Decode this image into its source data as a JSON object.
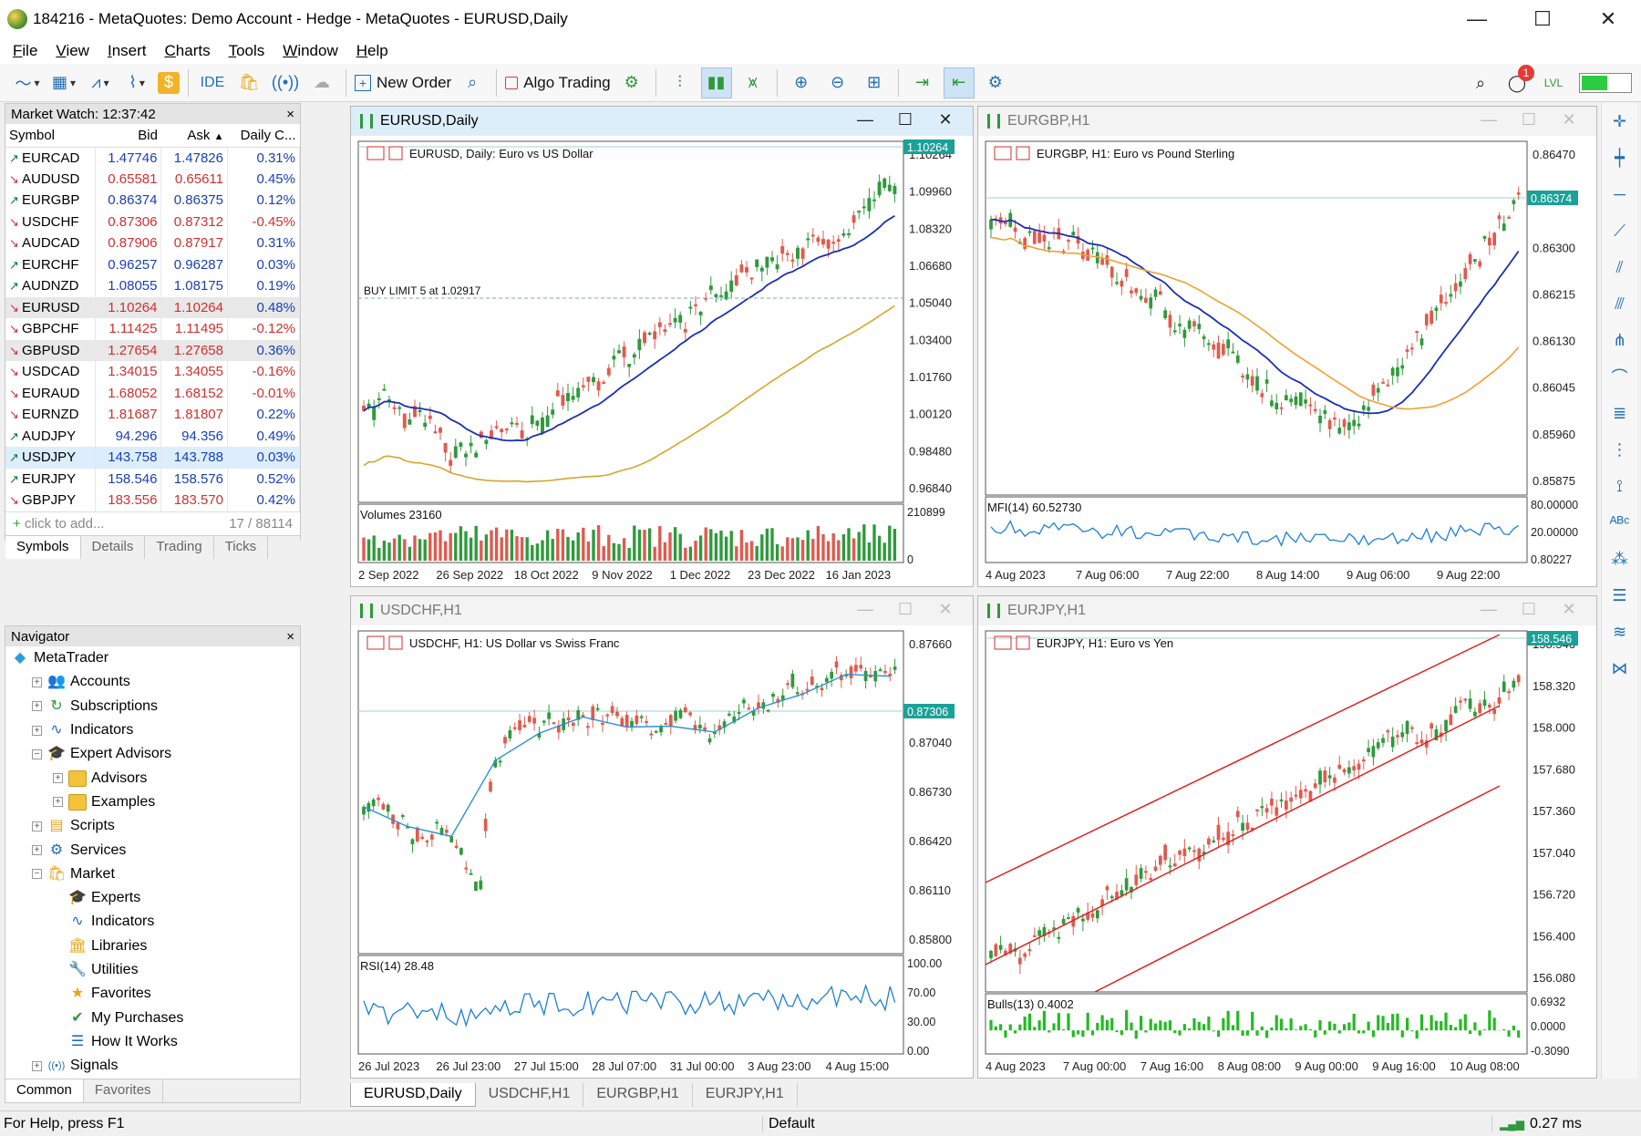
{
  "window": {
    "title": "184216 - MetaQuotes: Demo Account - Hedge - MetaQuotes - EURUSD,Daily"
  },
  "menu": [
    "File",
    "View",
    "Insert",
    "Charts",
    "Tools",
    "Window",
    "Help"
  ],
  "toolbar": {
    "ide": "IDE",
    "new_order": "New Order",
    "algo_trading": "Algo Trading",
    "notifications": "1"
  },
  "market_watch": {
    "title": "Market Watch: 12:37:42",
    "columns": [
      "Symbol",
      "Bid",
      "Ask",
      "Daily C..."
    ],
    "rows": [
      {
        "symbol": "EURCAD",
        "bid": "1.47746",
        "ask": "1.47826",
        "chg": "0.31%",
        "dir": "up"
      },
      {
        "symbol": "AUDUSD",
        "bid": "0.65581",
        "ask": "0.65611",
        "chg": "0.45%",
        "dir": "dn"
      },
      {
        "symbol": "EURGBP",
        "bid": "0.86374",
        "ask": "0.86375",
        "chg": "0.12%",
        "dir": "up"
      },
      {
        "symbol": "USDCHF",
        "bid": "0.87306",
        "ask": "0.87312",
        "chg": "-0.45%",
        "dir": "dn"
      },
      {
        "symbol": "AUDCAD",
        "bid": "0.87906",
        "ask": "0.87917",
        "chg": "0.31%",
        "dir": "dn"
      },
      {
        "symbol": "EURCHF",
        "bid": "0.96257",
        "ask": "0.96287",
        "chg": "0.03%",
        "dir": "up"
      },
      {
        "symbol": "AUDNZD",
        "bid": "1.08055",
        "ask": "1.08175",
        "chg": "0.19%",
        "dir": "up"
      },
      {
        "symbol": "EURUSD",
        "bid": "1.10264",
        "ask": "1.10264",
        "chg": "0.48%",
        "dir": "dn"
      },
      {
        "symbol": "GBPCHF",
        "bid": "1.11425",
        "ask": "1.11495",
        "chg": "-0.12%",
        "dir": "dn"
      },
      {
        "symbol": "GBPUSD",
        "bid": "1.27654",
        "ask": "1.27658",
        "chg": "0.36%",
        "dir": "dn"
      },
      {
        "symbol": "USDCAD",
        "bid": "1.34015",
        "ask": "1.34055",
        "chg": "-0.16%",
        "dir": "dn"
      },
      {
        "symbol": "EURAUD",
        "bid": "1.68052",
        "ask": "1.68152",
        "chg": "-0.01%",
        "dir": "dn"
      },
      {
        "symbol": "EURNZD",
        "bid": "1.81687",
        "ask": "1.81807",
        "chg": "0.22%",
        "dir": "dn"
      },
      {
        "symbol": "AUDJPY",
        "bid": "94.296",
        "ask": "94.356",
        "chg": "0.49%",
        "dir": "up"
      },
      {
        "symbol": "USDJPY",
        "bid": "143.758",
        "ask": "143.788",
        "chg": "0.03%",
        "dir": "up"
      },
      {
        "symbol": "EURJPY",
        "bid": "158.546",
        "ask": "158.576",
        "chg": "0.52%",
        "dir": "up"
      },
      {
        "symbol": "GBPJPY",
        "bid": "183.556",
        "ask": "183.570",
        "chg": "0.42%",
        "dir": "dn"
      }
    ],
    "add_text": "click to add...",
    "count": "17 / 88114",
    "tabs": [
      "Symbols",
      "Details",
      "Trading",
      "Ticks"
    ]
  },
  "navigator": {
    "title": "Navigator",
    "items": [
      {
        "label": "MetaTrader",
        "level": 0,
        "exp": "",
        "icon": "mt"
      },
      {
        "label": "Accounts",
        "level": 1,
        "exp": "+",
        "icon": "user"
      },
      {
        "label": "Subscriptions",
        "level": 1,
        "exp": "+",
        "icon": "sub"
      },
      {
        "label": "Indicators",
        "level": 1,
        "exp": "+",
        "icon": "ind"
      },
      {
        "label": "Expert Advisors",
        "level": 1,
        "exp": "−",
        "icon": "cap"
      },
      {
        "label": "Advisors",
        "level": 2,
        "exp": "+",
        "icon": "folder"
      },
      {
        "label": "Examples",
        "level": 2,
        "exp": "+",
        "icon": "folder"
      },
      {
        "label": "Scripts",
        "level": 1,
        "exp": "+",
        "icon": "script"
      },
      {
        "label": "Services",
        "level": 1,
        "exp": "+",
        "icon": "gear"
      },
      {
        "label": "Market",
        "level": 1,
        "exp": "−",
        "icon": "bag"
      },
      {
        "label": "Experts",
        "level": 2,
        "exp": "",
        "icon": "cap"
      },
      {
        "label": "Indicators",
        "level": 2,
        "exp": "",
        "icon": "ind"
      },
      {
        "label": "Libraries",
        "level": 2,
        "exp": "",
        "icon": "lib"
      },
      {
        "label": "Utilities",
        "level": 2,
        "exp": "",
        "icon": "util"
      },
      {
        "label": "Favorites",
        "level": 2,
        "exp": "",
        "icon": "star"
      },
      {
        "label": "My Purchases",
        "level": 2,
        "exp": "",
        "icon": "check"
      },
      {
        "label": "How It Works",
        "level": 2,
        "exp": "",
        "icon": "doc"
      },
      {
        "label": "Signals",
        "level": 1,
        "exp": "+",
        "icon": "sig"
      }
    ],
    "tabs": [
      "Common",
      "Favorites"
    ]
  },
  "charts": [
    {
      "id": "eurusd",
      "tab": "EURUSD,Daily",
      "label": "EURUSD, Daily:  Euro vs US Dollar",
      "prices": [
        "1.10264",
        "1.09960",
        "1.08320",
        "1.06680",
        "1.05040",
        "1.03400",
        "1.01760",
        "1.00120",
        "0.98480",
        "0.96840"
      ],
      "current": "1.10264",
      "sub_label": "Volumes 23160",
      "sub_ticks": [
        "210899",
        "0"
      ],
      "dates": [
        "2 Sep 2022",
        "26 Sep 2022",
        "18 Oct 2022",
        "9 Nov 2022",
        "1 Dec 2022",
        "23 Dec 2022",
        "16 Jan 2023"
      ],
      "order": "BUY LIMIT  5 at 1.02917"
    },
    {
      "id": "eurgbp",
      "tab": "EURGBP,H1",
      "label": "EURGBP, H1:  Euro vs Pound Sterling",
      "prices": [
        "0.86470",
        "0.86374",
        "0.86300",
        "0.86215",
        "0.86130",
        "0.86045",
        "0.85960",
        "0.85875"
      ],
      "current": "0.86374",
      "sub_label": "MFI(14) 60.52730",
      "sub_ticks": [
        "80.00000",
        "20.00000",
        "0.80227"
      ],
      "dates": [
        "4 Aug 2023",
        "7 Aug 06:00",
        "7 Aug 22:00",
        "8 Aug 14:00",
        "9 Aug 06:00",
        "9 Aug 22:00"
      ]
    },
    {
      "id": "usdchf",
      "tab": "USDCHF,H1",
      "label": "USDCHF, H1:  US Dollar vs Swiss Franc",
      "prices": [
        "0.87660",
        "0.87306",
        "0.87040",
        "0.86730",
        "0.86420",
        "0.86110",
        "0.85800"
      ],
      "current": "0.87306",
      "sub_label": "RSI(14) 28.48",
      "sub_ticks": [
        "100.00",
        "70.00",
        "30.00",
        "0.00"
      ],
      "dates": [
        "26 Jul 2023",
        "26 Jul 23:00",
        "27 Jul 15:00",
        "28 Jul 07:00",
        "31 Jul 00:00",
        "3 Aug 23:00",
        "4 Aug 15:00"
      ]
    },
    {
      "id": "eurjpy",
      "tab": "EURJPY,H1",
      "label": "EURJPY, H1:  Euro vs Yen",
      "prices": [
        "158.546",
        "158.320",
        "158.000",
        "157.680",
        "157.360",
        "157.040",
        "156.720",
        "156.400",
        "156.080"
      ],
      "current": "158.546",
      "sub_label": "Bulls(13) 0.4002",
      "sub_ticks": [
        "0.6932",
        "0.0000",
        "-0.3090"
      ],
      "dates": [
        "4 Aug 2023",
        "7 Aug 00:00",
        "7 Aug 16:00",
        "8 Aug 08:00",
        "9 Aug 00:00",
        "9 Aug 16:00",
        "10 Aug 08:00"
      ]
    }
  ],
  "status": {
    "help": "For Help, press F1",
    "profile": "Default",
    "ping": "0.27 ms"
  },
  "colors": {
    "up": "#2e9a3b",
    "down": "#e05a4e",
    "accent": "#1f6fb8"
  }
}
